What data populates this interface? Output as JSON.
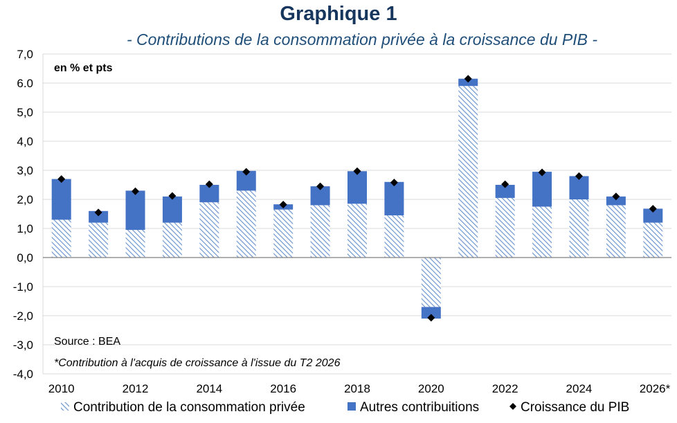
{
  "header": {
    "title": "Graphique 1",
    "subtitle": "- Contributions de la consommation privée à la croissance du PIB -"
  },
  "annotations": {
    "unit": "en % et pts",
    "source": "Source : BEA",
    "note": "*Contribution à l'acquis de croissance à l'issue du T2 2026"
  },
  "colors": {
    "stripe": "#6f96cf",
    "stripe_bg": "#ffffff",
    "others": "#4472c4",
    "marker": "#000000",
    "grid": "#d9d9d9",
    "axis": "#7f7f7f"
  },
  "chart_data": {
    "type": "bar",
    "stacked": true,
    "categories": [
      "2010",
      "2011",
      "2012",
      "2013",
      "2014",
      "2015",
      "2016",
      "2017",
      "2018",
      "2019",
      "2020",
      "2021",
      "2022",
      "2023",
      "2024",
      "2025",
      "2026*"
    ],
    "x_tick_labels": [
      "2010",
      "",
      "2012",
      "",
      "2014",
      "",
      "2016",
      "",
      "2018",
      "",
      "2020",
      "",
      "2022",
      "",
      "2024",
      "",
      "2026*"
    ],
    "y_tick_labels": [
      "7,0",
      "6.0",
      "5,0",
      "4,0",
      "3,0",
      "2,0",
      "1,0",
      "0,0",
      "-1,0",
      "-2,0",
      "-3,0",
      "-4,0"
    ],
    "ylim": [
      -4,
      7
    ],
    "grid": true,
    "legend_position": "bottom",
    "series": [
      {
        "name": "Contribution de la consommation privée",
        "kind": "bar-hatched",
        "values": [
          1.3,
          1.2,
          0.95,
          1.2,
          1.9,
          2.3,
          1.65,
          1.8,
          1.85,
          1.45,
          -1.7,
          5.9,
          2.05,
          1.75,
          2.0,
          1.8,
          1.2
        ]
      },
      {
        "name": "Autres contribuitions",
        "kind": "bar",
        "values": [
          1.4,
          0.4,
          1.35,
          0.9,
          0.6,
          0.68,
          0.18,
          0.65,
          1.12,
          1.15,
          -0.4,
          0.25,
          0.45,
          1.2,
          0.8,
          0.3,
          0.48
        ]
      },
      {
        "name": "Croissance du PIB",
        "kind": "marker",
        "values": [
          2.7,
          1.55,
          2.28,
          2.12,
          2.52,
          2.95,
          1.82,
          2.45,
          2.97,
          2.58,
          -2.07,
          6.15,
          2.52,
          2.93,
          2.8,
          2.1,
          1.68
        ]
      }
    ]
  }
}
